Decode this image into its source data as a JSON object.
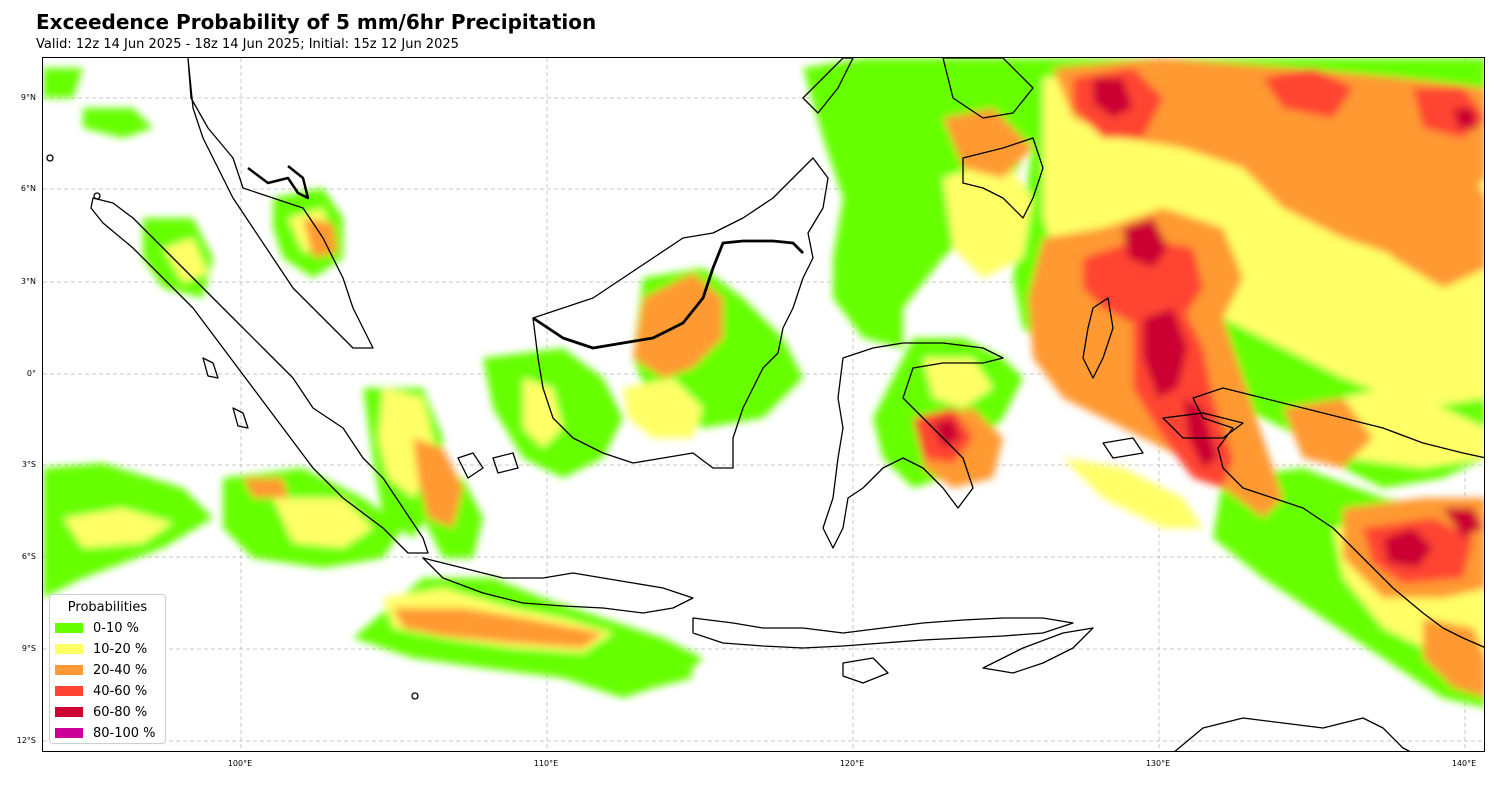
{
  "title": "Exceedence Probability of 5 mm/6hr Precipitation",
  "subtitle": "Valid: 12z 14 Jun 2025 - 18z 14 Jun 2025; Initial: 15z 12 Jun 2025",
  "map": {
    "lat_labels": [
      "9°N",
      "6°N",
      "3°N",
      "0°",
      "3°S",
      "6°S",
      "9°S",
      "12°S"
    ],
    "lon_labels": [
      "100°E",
      "110°E",
      "120°E",
      "130°E",
      "140°E"
    ],
    "gridlines": true,
    "coastline_color": "#000000",
    "region": "Maritime Continent / Indonesia"
  },
  "legend": {
    "title": "Probabilities",
    "placement": "bottom-left",
    "items": [
      {
        "label": "0-10 %",
        "color": "#66ff00"
      },
      {
        "label": "10-20 %",
        "color": "#ffff66"
      },
      {
        "label": "20-40 %",
        "color": "#ff9933"
      },
      {
        "label": "40-60 %",
        "color": "#ff4433"
      },
      {
        "label": "60-80 %",
        "color": "#cc0033"
      },
      {
        "label": "80-100 %",
        "color": "#cc0099"
      }
    ]
  }
}
